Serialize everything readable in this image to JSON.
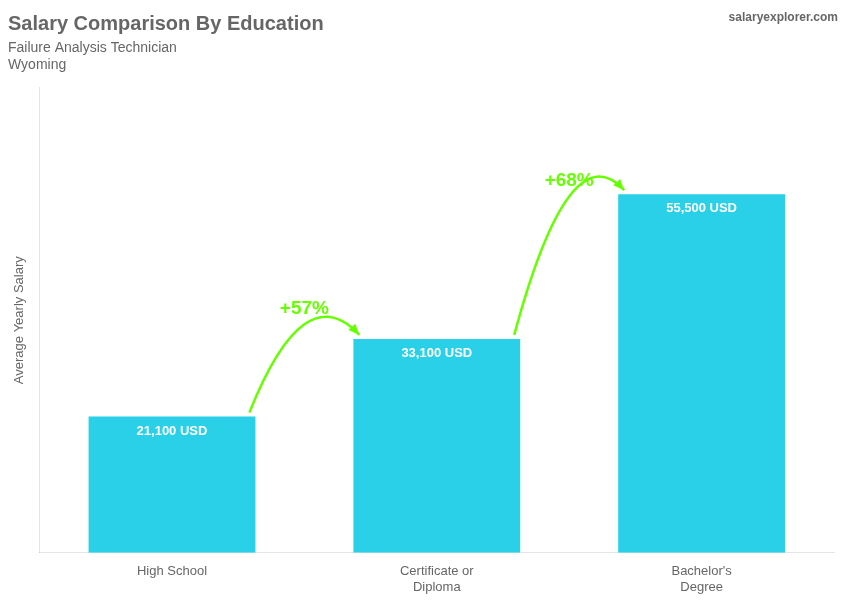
{
  "chart_data": {
    "type": "bar",
    "title": "Salary Comparison By Education",
    "subtitle": "Failure Analysis Technician",
    "location": "Wyoming",
    "site": "salaryexplorer.com",
    "ylabel": "Average Yearly Salary",
    "categories": [
      "High School",
      "Certificate or\nDiploma",
      "Bachelor's\nDegree"
    ],
    "values": [
      21100,
      33100,
      55500
    ],
    "value_labels": [
      "21,100 USD",
      "33,100 USD",
      "55,500 USD"
    ],
    "data_labels": true,
    "color": "#29d0e8",
    "ylim": [
      0,
      72000
    ],
    "grid": false,
    "tick_labels": "x",
    "annotations": [
      {
        "text": "+57%",
        "color": "#66ff00"
      },
      {
        "text": "+68%",
        "color": "#66ff00"
      }
    ]
  }
}
